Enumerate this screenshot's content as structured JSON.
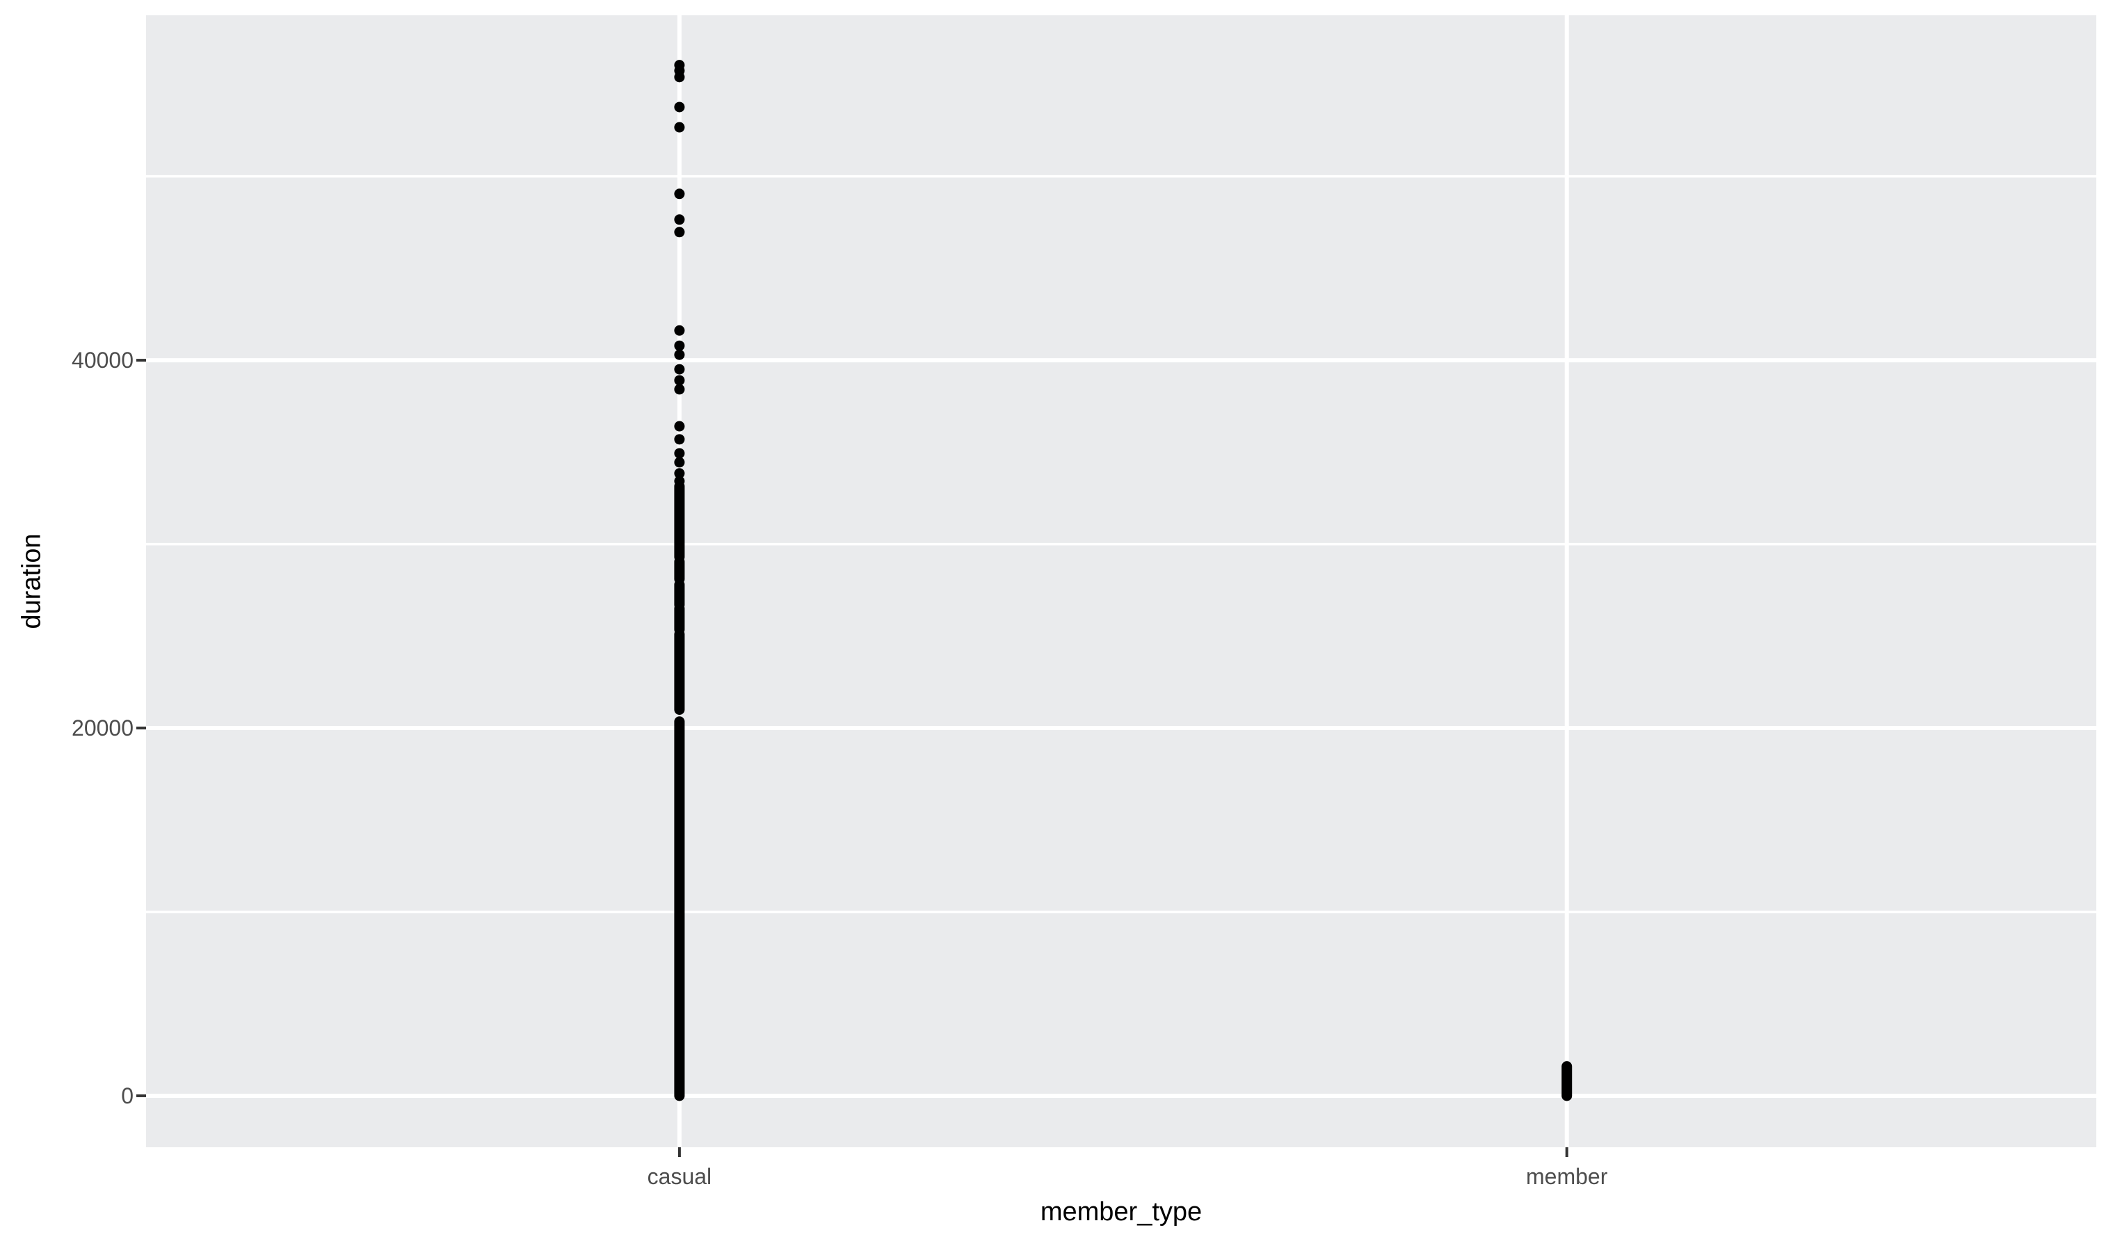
{
  "figure": {
    "background": "#FFFFFF",
    "panel_background": "#EAEBED",
    "grid_color": "#FFFFFF",
    "point_color": "#000000",
    "tick_label_color": "#4D4D4D",
    "axis_title_color": "#000000",
    "tick_mark_color": "#333333"
  },
  "chart_data": {
    "type": "scatter",
    "subtype": "strip-plot",
    "title": "",
    "xlabel": "member_type",
    "ylabel": "duration",
    "categories": [
      "casual",
      "member"
    ],
    "category_positions": [
      0.2735,
      0.7285
    ],
    "x_tick_labels": [
      "casual",
      "member"
    ],
    "ylim": [
      -2800,
      58760
    ],
    "y_major_ticks": [
      0,
      20000,
      40000
    ],
    "y_tick_labels": [
      "0",
      "20000",
      "40000"
    ],
    "y_minor_gridlines": [
      10000,
      30000,
      50000
    ],
    "grid": "major+minor",
    "legend": "none",
    "series": [
      {
        "name": "casual",
        "dense_ranges": [
          [
            0,
            20350
          ],
          [
            21000,
            25100
          ],
          [
            25350,
            26500
          ],
          [
            26700,
            27800
          ],
          [
            28100,
            29050
          ],
          [
            29300,
            33150
          ]
        ],
        "points": [
          33430,
          33850,
          34450,
          34940,
          35700,
          36410,
          38420,
          38910,
          39510,
          40300,
          40790,
          41620,
          46970,
          47650,
          49050,
          52670,
          53770,
          55400,
          55750,
          56050
        ]
      },
      {
        "name": "member",
        "dense_ranges": [
          [
            0,
            1600
          ]
        ],
        "points": []
      }
    ]
  }
}
